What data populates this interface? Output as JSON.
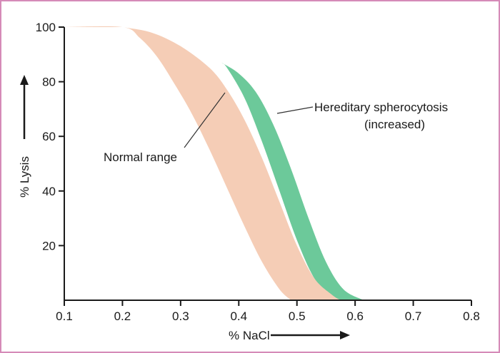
{
  "chart_data": {
    "type": "area",
    "xlabel": "% NaCl",
    "ylabel": "% Lysis",
    "xlim": [
      0.1,
      0.8
    ],
    "ylim": [
      0,
      100
    ],
    "x_ticks": [
      "0.1",
      "0.2",
      "0.3",
      "0.4",
      "0.5",
      "0.6",
      "0.7",
      "0.8"
    ],
    "y_ticks": [
      "20",
      "40",
      "60",
      "80",
      "100"
    ],
    "colors": {
      "normal": "#f5cdb6",
      "hs": "#6cc99a",
      "axis": "#1a1a1a",
      "border": "#d58ab8"
    },
    "series": [
      {
        "name": "Normal range",
        "label": "Normal range",
        "upper": [
          [
            0.2,
            100
          ],
          [
            0.25,
            98
          ],
          [
            0.3,
            93
          ],
          [
            0.35,
            85
          ],
          [
            0.38,
            77
          ],
          [
            0.41,
            66
          ],
          [
            0.44,
            52
          ],
          [
            0.47,
            36
          ],
          [
            0.5,
            20
          ],
          [
            0.53,
            8
          ],
          [
            0.56,
            2
          ],
          [
            0.575,
            0
          ]
        ],
        "lower": [
          [
            0.1,
            100
          ],
          [
            0.2,
            100
          ],
          [
            0.23,
            96
          ],
          [
            0.26,
            89
          ],
          [
            0.29,
            79
          ],
          [
            0.32,
            68
          ],
          [
            0.35,
            55
          ],
          [
            0.38,
            41
          ],
          [
            0.41,
            27
          ],
          [
            0.44,
            14
          ],
          [
            0.47,
            4
          ],
          [
            0.49,
            0
          ]
        ]
      },
      {
        "name": "Hereditary spherocytosis",
        "label": [
          "Hereditary spherocytosis",
          "(increased)"
        ],
        "upper": [
          [
            0.37,
            87
          ],
          [
            0.4,
            83
          ],
          [
            0.43,
            76
          ],
          [
            0.46,
            64
          ],
          [
            0.49,
            48
          ],
          [
            0.52,
            30
          ],
          [
            0.55,
            14
          ],
          [
            0.58,
            4
          ],
          [
            0.615,
            0
          ]
        ],
        "lower": [
          [
            0.37,
            87
          ],
          [
            0.38,
            85
          ],
          [
            0.41,
            74
          ],
          [
            0.44,
            58
          ],
          [
            0.47,
            40
          ],
          [
            0.5,
            22
          ],
          [
            0.53,
            8
          ],
          [
            0.56,
            1
          ],
          [
            0.575,
            0
          ]
        ]
      }
    ]
  }
}
